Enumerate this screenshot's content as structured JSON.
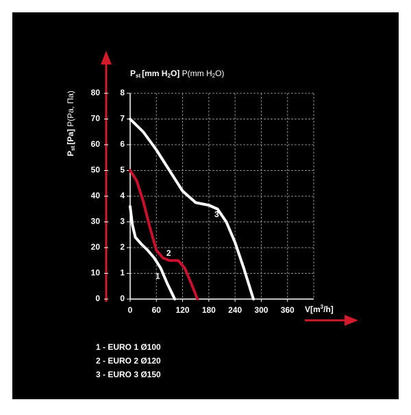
{
  "chart_data": {
    "type": "line",
    "x_label": {
      "main": "V[m",
      "sup": "3",
      "rest": "/h]"
    },
    "y_label": {
      "main": "P",
      "sub": "st",
      "rest": "[mm H",
      "sub2": "2",
      "rest2": "O]",
      "alt": "P(mm H",
      "alt_sub": "2",
      "alt_rest": "O)"
    },
    "y2_label": {
      "main": "P",
      "sub": "st",
      "rest": "[Pa]",
      "alt": "P(Pa, Па)"
    },
    "xlim": [
      0,
      420
    ],
    "xticks": [
      0,
      60,
      120,
      180,
      240,
      300,
      360
    ],
    "ylim": [
      0,
      8
    ],
    "yticks": [
      0,
      1,
      2,
      3,
      4,
      5,
      6,
      7,
      8
    ],
    "y2lim": [
      0,
      80
    ],
    "y2ticks": [
      0,
      10,
      20,
      30,
      40,
      50,
      60,
      70,
      80
    ],
    "grid": true,
    "series": [
      {
        "name": "1 - EURO 1 Ø100",
        "label": "1",
        "color": "#ffffff",
        "x": [
          0,
          5,
          12,
          25,
          40,
          55,
          70,
          85,
          95,
          102
        ],
        "values": [
          3.6,
          2.9,
          2.4,
          2.15,
          1.9,
          1.6,
          1.2,
          0.6,
          0.25,
          0
        ]
      },
      {
        "name": "2 - EURO 2 Ø120",
        "label": "2",
        "color": "#c8102e",
        "x": [
          0,
          15,
          30,
          45,
          60,
          75,
          90,
          110,
          125,
          140,
          154
        ],
        "values": [
          5,
          4.6,
          3.8,
          2.8,
          1.9,
          1.6,
          1.5,
          1.5,
          1.2,
          0.6,
          0
        ]
      },
      {
        "name": "3 - EURO 3 Ø150",
        "label": "3",
        "color": "#ffffff",
        "x": [
          0,
          30,
          60,
          90,
          120,
          150,
          180,
          200,
          220,
          240,
          260,
          282
        ],
        "values": [
          7,
          6.5,
          5.8,
          5,
          4.2,
          3.75,
          3.65,
          3.5,
          3,
          2.2,
          1.2,
          0
        ]
      }
    ]
  }
}
